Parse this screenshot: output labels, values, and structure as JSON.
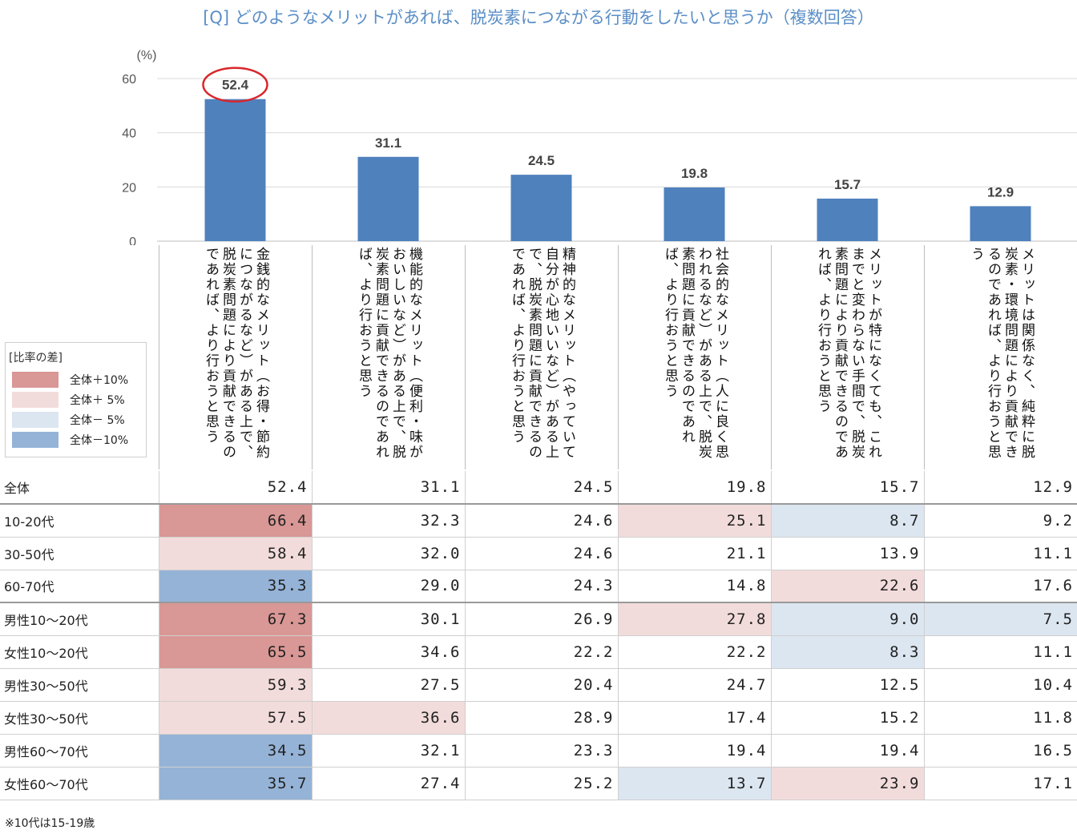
{
  "title": "[Q] どのようなメリットがあれば、脱炭素につながる行動をしたいと思うか（複数回答）",
  "chart_data": {
    "type": "bar",
    "unit_label": "(%)",
    "y_ticks": [
      "60",
      "40",
      "20",
      "0"
    ],
    "ylim": [
      0,
      60
    ],
    "categories": [
      "金銭的なメリット（お得・節約につながるなど）がある上で、脱炭素問題により貢献できるのであれば、より行おうと思う",
      "機能的なメリット（便利・味がおいしいなど）がある上で、脱炭素問題に貢献できるのであれば、より行おうと思う",
      "精神的なメリット（やっていて自分が心地いいなど）がある上で、脱炭素問題に貢献できるのであれば、より行おうと思う",
      "社会的なメリット（人に良く思われるなど）がある上で、脱炭素問題に貢献できるのであれば、より行おうと思う",
      "メリットが特になくても、これまでと変わらない手間で、脱炭素問題により貢献できるのであれば、より行おうと思う",
      "メリットは関係なく、純粋に脱炭素・環境問題により貢献できるのであれば、より行おうと思う"
    ],
    "values": [
      52.4,
      31.1,
      24.5,
      19.8,
      15.7,
      12.9
    ],
    "value_labels": [
      "52.4",
      "31.1",
      "24.5",
      "19.8",
      "15.7",
      "12.9"
    ],
    "highlighted_index": 0,
    "bar_color": "#4f81bd",
    "highlight_color": "#d9262b"
  },
  "legend": {
    "title": "[比率の差]",
    "items": [
      {
        "label": "全体＋10%",
        "color": "#d99795"
      },
      {
        "label": "全体＋ 5%",
        "color": "#f2dcdb"
      },
      {
        "label": "全体－ 5%",
        "color": "#dce6f1"
      },
      {
        "label": "全体－10%",
        "color": "#95b3d7"
      }
    ]
  },
  "table": {
    "rows": [
      {
        "label": "全体",
        "values": [
          "52.4",
          "31.1",
          "24.5",
          "19.8",
          "15.7",
          "12.9"
        ],
        "fills": [
          "",
          "",
          "",
          "",
          "",
          ""
        ]
      },
      {
        "label": "10-20代",
        "values": [
          "66.4",
          "32.3",
          "24.6",
          "25.1",
          "8.7",
          "9.2"
        ],
        "fills": [
          "#d99795",
          "",
          "",
          "#f2dcdb",
          "#dce6f1",
          ""
        ]
      },
      {
        "label": "30-50代",
        "values": [
          "58.4",
          "32.0",
          "24.6",
          "21.1",
          "13.9",
          "11.1"
        ],
        "fills": [
          "#f2dcdb",
          "",
          "",
          "",
          "",
          ""
        ]
      },
      {
        "label": "60-70代",
        "values": [
          "35.3",
          "29.0",
          "24.3",
          "14.8",
          "22.6",
          "17.6"
        ],
        "fills": [
          "#95b3d7",
          "",
          "",
          "",
          "#f2dcdb",
          ""
        ]
      },
      {
        "label": "男性10～20代",
        "values": [
          "67.3",
          "30.1",
          "26.9",
          "27.8",
          "9.0",
          "7.5"
        ],
        "fills": [
          "#d99795",
          "",
          "",
          "#f2dcdb",
          "#dce6f1",
          "#dce6f1"
        ]
      },
      {
        "label": "女性10～20代",
        "values": [
          "65.5",
          "34.6",
          "22.2",
          "22.2",
          "8.3",
          "11.1"
        ],
        "fills": [
          "#d99795",
          "",
          "",
          "",
          "#dce6f1",
          ""
        ]
      },
      {
        "label": "男性30～50代",
        "values": [
          "59.3",
          "27.5",
          "20.4",
          "24.7",
          "12.5",
          "10.4"
        ],
        "fills": [
          "#f2dcdb",
          "",
          "",
          "",
          "",
          ""
        ]
      },
      {
        "label": "女性30～50代",
        "values": [
          "57.5",
          "36.6",
          "28.9",
          "17.4",
          "15.2",
          "11.8"
        ],
        "fills": [
          "#f2dcdb",
          "#f2dcdb",
          "",
          "",
          "",
          ""
        ]
      },
      {
        "label": "男性60～70代",
        "values": [
          "34.5",
          "32.1",
          "23.3",
          "19.4",
          "19.4",
          "16.5"
        ],
        "fills": [
          "#95b3d7",
          "",
          "",
          "",
          "",
          ""
        ]
      },
      {
        "label": "女性60～70代",
        "values": [
          "35.7",
          "27.4",
          "25.2",
          "13.7",
          "23.9",
          "17.1"
        ],
        "fills": [
          "#95b3d7",
          "",
          "",
          "#dce6f1",
          "#f2dcdb",
          ""
        ]
      }
    ]
  },
  "note": "※10代は15-19歳"
}
